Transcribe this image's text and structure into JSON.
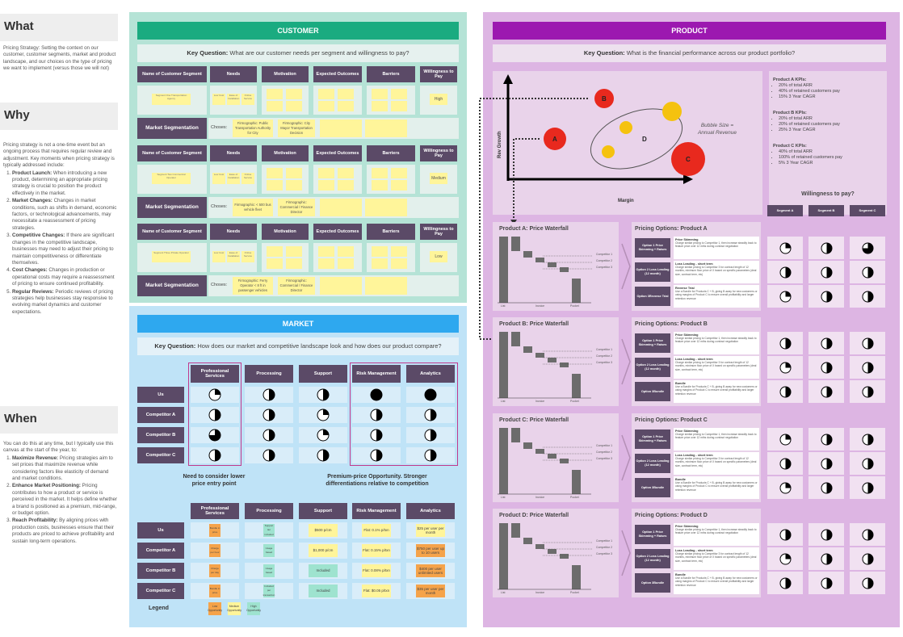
{
  "left": {
    "what": {
      "heading": "What",
      "text": "Pricing Strategy: Setting the context on our customer, customer segments, market and product landscape, and our choices on the type of pricing we want to implement (versus those we will not)"
    },
    "why": {
      "heading": "Why",
      "intro": "Pricing strategy is not a one-time event but an ongoing process that requires regular review and adjustment. Key moments when pricing strategy is typically addressed include:",
      "items": [
        {
          "title": "Product Launch:",
          "text": "When introducing a new product, determining an appropriate pricing strategy is crucial to position the product effectively in the market."
        },
        {
          "title": "Market Changes:",
          "text": "Changes in market conditions, such as shifts in demand, economic factors, or technological advancements, may necessitate a reassessment of pricing strategies."
        },
        {
          "title": "Competitive Changes:",
          "text": "If there are significant changes in the competitive landscape, businesses may need to adjust their pricing to maintain competitiveness or differentiate themselves."
        },
        {
          "title": "Cost Changes:",
          "text": "Changes in production or operational costs may require a reassessment of pricing to ensure continued profitability."
        },
        {
          "title": "Regular Reviews:",
          "text": "Periodic reviews of pricing strategies help businesses stay responsive to evolving market dynamics and customer expectations."
        }
      ]
    },
    "when": {
      "heading": "When",
      "intro": "You can do this at any time, but I typically use this canvas at the start of the year, to:",
      "items": [
        {
          "title": "Maximize Revenue:",
          "text": "Pricing strategies aim to set prices that maximize revenue while considering factors like elasticity of demand and market conditions."
        },
        {
          "title": "Enhance Market Positioning:",
          "text": "Pricing contributes to how a product or service is perceived in the market. It helps define whether a brand is positioned as a premium, mid-range, or budget option."
        },
        {
          "title": "Reach Profitability:",
          "text": "By aligning prices with production costs, businesses ensure that their products are priced to achieve profitability and sustain long-term operations."
        }
      ]
    }
  },
  "customer": {
    "banner": "CUSTOMER",
    "key_label": "Key Question:",
    "key_text": "What are our customer needs per segment and willingness to pay?",
    "headers": [
      "Name of Customer Segment",
      "Needs",
      "Motivation",
      "Expected Outcomes",
      "Barriers",
      "Willingness to Pay"
    ],
    "seg_label": "Market Segmentation",
    "chooses": "Choses:",
    "groups": [
      {
        "name": "Segment One Transportation Agency",
        "wtp": "High",
        "firmo1": "Firmographic: Public Transportation Authority for City",
        "firmo2": "Firmographic: City Mayor Transportation Decision"
      },
      {
        "name": "Segment Two Commercial Operator",
        "wtp": "Medium",
        "firmo1": "Firmographic: < 500 bus vehicle fleet",
        "firmo2": "Firmographic: Commercial / Finance Director"
      },
      {
        "name": "Segment Three Private Operator",
        "wtp": "Low",
        "firmo1": "Firmographic: Ferry Operator < 8 ft in passenger vehicles",
        "firmo2": "Firmographic: Commercial / Finance Director"
      }
    ],
    "need_stickies": [
      "Low Cost",
      "Ease of Installation",
      "Online Service"
    ]
  },
  "market": {
    "banner": "MARKET",
    "key_label": "Key Question:",
    "key_text": "How does our market and competitive landscape look and how does our product compare?",
    "columns": [
      "Professional Services",
      "Processing",
      "Support",
      "Risk Management",
      "Analytics"
    ],
    "rows": [
      "Us",
      "Competitor A",
      "Competitor B",
      "Competitor C"
    ],
    "scores": [
      [
        0.25,
        0.5,
        0.5,
        1.0,
        1.0
      ],
      [
        0.5,
        0.5,
        0.25,
        0.5,
        0.5
      ],
      [
        0.75,
        0.5,
        0.25,
        0.5,
        0.5
      ],
      [
        0.5,
        0.5,
        0.5,
        0.5,
        0.5
      ]
    ],
    "note_left": "Need to consider lower price entry point",
    "note_right": "Premium-price Opportunity. Stronger differentiations relative to competition",
    "price_rows": [
      [
        "Bundle in price",
        "Support tier included",
        "$500 p/cm",
        "Flat: 0.1% p/txn",
        "$25 per user per month"
      ],
      [
        "Charge per hour",
        "Usage based",
        "$1,000 p/cm",
        "Flat: 0.15% p/txn",
        "$750 per user up to 10 users"
      ],
      [
        "Charge per day",
        "Usage based",
        "Included",
        "Flat: 0.08% p/txn",
        "$400 per user unlimited users"
      ],
      [
        "Bundle in price",
        "Included per transaction",
        "Included",
        "Flat: $0.05 p/txn",
        "$35 per user per month"
      ]
    ],
    "legend_label": "Legend",
    "legend": [
      "Low Opportunity",
      "Medium Opportunity",
      "High Opportunity"
    ],
    "colors": {
      "low": "#f5a34a",
      "medium": "#fff59a",
      "high": "#9ee3cf",
      "outline": "#c0398c"
    }
  },
  "product": {
    "banner": "PRODUCT",
    "key_label": "Key Question:",
    "key_text": "What is the financial performance across our product portfolio?",
    "bubble": {
      "y_label": "Rev Growth",
      "x_label": "Margin",
      "note": "Bubble Size = Annual Revenue",
      "labels": [
        "A",
        "B",
        "C",
        "D"
      ]
    },
    "kpis": [
      {
        "title": "Product A KPIs:",
        "items": [
          "20% of total ARR",
          "40% of retained customers pay",
          "15% 3 Year CAGR"
        ]
      },
      {
        "title": "Product B KPIs:",
        "items": [
          "20% of total ARR",
          "20% of retained customers pay",
          "25% 3 Year CAGR"
        ]
      },
      {
        "title": "Product C KPIs:",
        "items": [
          "40% of total ARR",
          "100% of retained customers pay",
          "5% 3 Year CAGR"
        ]
      }
    ],
    "wtp_title": "Willingness to pay?",
    "segments": [
      "Segment A",
      "Segment B",
      "Segment C"
    ],
    "products": [
      {
        "waterfall": "Product A: Price Waterfall",
        "options_title": "Pricing Options: Product A",
        "third": "Reverse Trial"
      },
      {
        "waterfall": "Product B: Price Waterfall",
        "options_title": "Pricing Options: Product B",
        "third": "Bundle"
      },
      {
        "waterfall": "Product C: Price Waterfall",
        "options_title": "Pricing Options: Product C",
        "third": "Bundle"
      },
      {
        "waterfall": "Product D: Price Waterfall",
        "options_title": "Pricing Options: Product D",
        "third": "Bundle"
      }
    ],
    "options": [
      {
        "label": "Option 1 Price Skimming + Raises",
        "title": "Price Skimming",
        "desc": "Charge similar pricing to Competitor 1, then increase steadily back to feature price over 12 mths during contract negotiation"
      },
      {
        "label": "Option 2 Loss Leading (12 month)",
        "title": "Loss Leading - short term",
        "desc": "Charge similar pricing to Competitor 3 for contract length of 12 months, minimum floor price of X based on specific parameters (deal size, contract term, etc)"
      },
      {
        "label": "Option 3",
        "title": "",
        "desc": "Use a Bundle for Products C + B, giving B away for new customers or using margins of Product C to ensure overall profitability and larger retention revenue"
      }
    ],
    "wf_labels": [
      "List",
      "Invoice",
      "Pocket"
    ],
    "competitors": [
      "Competitor 1",
      "Competitor 2",
      "Competitor 3"
    ],
    "wtp_scores": [
      [
        0.25,
        0.5,
        0.75
      ],
      [
        0.5,
        0.5,
        0.5
      ],
      [
        0.25,
        0.5,
        0.5
      ],
      [
        0.5,
        0.5,
        0.5
      ],
      [
        0.25,
        0.5,
        0.5
      ],
      [
        0.5,
        0.5,
        0.5
      ],
      [
        0.25,
        0.5,
        0.5
      ],
      [
        0.5,
        0.5,
        0.5
      ],
      [
        0.25,
        0.5,
        0.5
      ],
      [
        0.5,
        0.5,
        0.5
      ],
      [
        0.25,
        0.5,
        0.5
      ],
      [
        0.5,
        0.5,
        0.5
      ]
    ]
  },
  "colors": {
    "customer_banner": "#1aab80",
    "market_banner": "#2ea8ef",
    "product_banner": "#9c18b0",
    "header_dark": "#5b4a67",
    "bubble_red": "#e8291e",
    "bubble_yellow": "#f5c20f"
  }
}
